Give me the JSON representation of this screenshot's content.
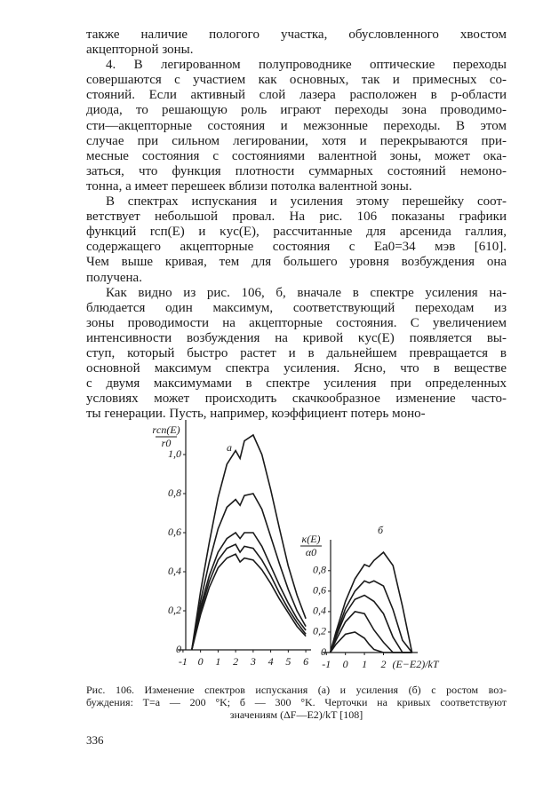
{
  "paragraphs": [
    {
      "lines": [
        "также наличие пологого участка, обусловленного хвостом",
        "акцепторной зоны."
      ]
    },
    {
      "lines": [
        "4. В легированном полупроводнике оптические переходы",
        "совершаются с участием как основных, так и примесных со-",
        "стояний. Если активный слой лазера расположен в p-области",
        "диода, то решающую роль играют переходы зона проводимо-",
        "сти—акцепторные состояния и межзонные переходы. В этом",
        "случае при сильном легировании, хотя и перекрываются при-",
        "месные состояния с состояниями валентной зоны, может ока-",
        "заться, что функция плотности суммарных состояний немоно-",
        "тонна, а имеет перешеек вблизи потолка валентной зоны."
      ]
    },
    {
      "lines": [
        "В спектрах испускания и усиления этому перешейку соот-",
        "ветствует небольшой провал. На рис. 106 показаны графики",
        "функций rсп(E) и κус(E), рассчитанные для арсенида галлия,",
        "содержащего акцепторные состояния с Eа0=34 мэв [610].",
        "Чем выше кривая, тем для большего уровня возбуждения она",
        "получена."
      ]
    },
    {
      "lines": [
        "Как видно из рис. 106, б, вначале в спектре усиления на-",
        "блюдается один максимум, соответствующий переходам из",
        "зоны проводимости на акцепторные состояния. С увеличением",
        "интенсивности возбуждения на кривой κус(E) появляется вы-",
        "ступ, который быстро растет и в дальнейшем превращается в",
        "основной максимум спектра усиления. Ясно, что в веществе",
        "с двумя максимумами в спектре усиления при определенных",
        "условиях может происходить скачкообразное изменение часто-",
        "ты генерации. Пусть, например, коэффициент потерь моно-"
      ]
    }
  ],
  "figure": {
    "charts": [
      {
        "type": "line",
        "panel_label": "а",
        "y_label": {
          "numerator": "rсп(E)",
          "denominator": "r0"
        },
        "color": "#1a1a1a",
        "x": [
          -0.5,
          0,
          0.5,
          1,
          1.5,
          2,
          2.25,
          2.5,
          3,
          3.5,
          4,
          4.5,
          5,
          5.5,
          6
        ],
        "series": [
          {
            "values": [
              0,
              0.3,
              0.55,
              0.78,
              0.95,
              1.02,
              0.98,
              1.07,
              1.1,
              1.0,
              0.82,
              0.62,
              0.43,
              0.28,
              0.16
            ]
          },
          {
            "values": [
              0,
              0.25,
              0.45,
              0.62,
              0.73,
              0.77,
              0.74,
              0.79,
              0.8,
              0.72,
              0.58,
              0.44,
              0.31,
              0.2,
              0.12
            ]
          },
          {
            "values": [
              0,
              0.22,
              0.38,
              0.5,
              0.57,
              0.6,
              0.57,
              0.6,
              0.6,
              0.53,
              0.43,
              0.33,
              0.24,
              0.16,
              0.1
            ]
          },
          {
            "values": [
              0,
              0.2,
              0.35,
              0.46,
              0.52,
              0.54,
              0.5,
              0.53,
              0.52,
              0.46,
              0.38,
              0.29,
              0.21,
              0.14,
              0.08
            ]
          },
          {
            "values": [
              0,
              0.18,
              0.32,
              0.42,
              0.47,
              0.49,
              0.45,
              0.47,
              0.46,
              0.41,
              0.34,
              0.26,
              0.19,
              0.12,
              0.07
            ]
          }
        ],
        "xlim": [
          -1.3,
          6.3
        ],
        "ylim": [
          0,
          1.15
        ],
        "xticks": [
          -1,
          0,
          1,
          2,
          3,
          4,
          5,
          6
        ],
        "yticks": [
          0,
          {
            "value": 0.2,
            "label": "0,2"
          },
          {
            "value": 0.4,
            "label": "0,4"
          },
          {
            "value": 0.6,
            "label": "0,6"
          },
          {
            "value": 0.8,
            "label": "0,8"
          },
          {
            "value": 1.0,
            "label": "1,0"
          }
        ]
      },
      {
        "type": "line",
        "panel_label": "б",
        "y_label": {
          "numerator": "κ(E)",
          "denominator": "α0"
        },
        "x_label": "(E−E2)/kT",
        "color": "#1a1a1a",
        "x": [
          -0.8,
          -0.5,
          0,
          0.5,
          1,
          1.25,
          1.5,
          2,
          2.5,
          3,
          3.5
        ],
        "series": [
          {
            "values": [
              0,
              0.2,
              0.5,
              0.72,
              0.86,
              0.84,
              0.9,
              0.98,
              0.85,
              0.45,
              0
            ]
          },
          {
            "values": [
              0,
              0.17,
              0.43,
              0.6,
              0.7,
              0.68,
              0.7,
              0.65,
              0.42,
              0.12,
              0
            ]
          },
          {
            "values": [
              0,
              0.15,
              0.38,
              0.52,
              0.56,
              0.53,
              0.5,
              0.38,
              0.15,
              0,
              0
            ]
          },
          {
            "values": [
              0,
              0.12,
              0.3,
              0.4,
              0.38,
              0.3,
              0.22,
              0.1,
              0,
              0,
              0
            ]
          },
          {
            "values": [
              0,
              0.08,
              0.18,
              0.2,
              0.14,
              0.08,
              0.03,
              0,
              0,
              0,
              0
            ]
          }
        ],
        "xlim": [
          -1.2,
          3.8
        ],
        "ylim": [
          0,
          1.05
        ],
        "xticks": [
          -1,
          0,
          1,
          2
        ],
        "yticks": [
          0,
          {
            "value": 0.2,
            "label": "0,2"
          },
          {
            "value": 0.4,
            "label": "0,4"
          },
          {
            "value": 0.6,
            "label": "0,6"
          },
          {
            "value": 0.8,
            "label": "0,8"
          }
        ]
      }
    ],
    "caption": {
      "lines": [
        "Рис. 106. Изменение спектров испускания (а) и усиления (б) с ростом воз-",
        "буждения: T=a — 200 °K; б — 300 °K. Черточки на кривых соответствуют",
        "значениям (ΔF—E2)/kT [108]"
      ]
    }
  },
  "page_number": "336"
}
